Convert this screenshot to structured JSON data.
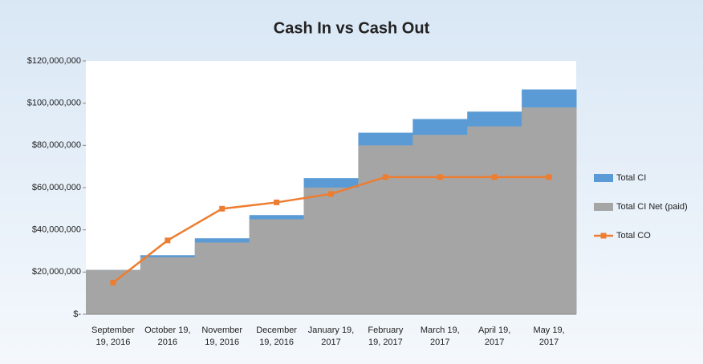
{
  "chart_data": {
    "type": "step-area-line",
    "title": "Cash In vs Cash Out",
    "categories": [
      "September 19, 2016",
      "October 19, 2016",
      "November 19, 2016",
      "December 19, 2016",
      "January 19, 2017",
      "February 19, 2017",
      "March 19, 2017",
      "April 19, 2017",
      "May 19, 2017"
    ],
    "series": [
      {
        "name": "Total CI",
        "color": "#5b9bd5",
        "kind": "area",
        "values": [
          21000000,
          28000000,
          36000000,
          47000000,
          64500000,
          86000000,
          92500000,
          96000000,
          106500000
        ]
      },
      {
        "name": "Total CI Net (paid)",
        "color": "#a5a5a5",
        "kind": "area",
        "values": [
          21000000,
          27000000,
          34000000,
          45000000,
          60000000,
          80000000,
          85000000,
          89000000,
          98000000
        ]
      },
      {
        "name": "Total CO",
        "color": "#ed7d31",
        "kind": "line",
        "values": [
          15000000,
          35000000,
          50000000,
          53000000,
          57000000,
          65000000,
          65000000,
          65000000,
          65000000
        ]
      }
    ],
    "ylim": [
      0,
      120000000
    ],
    "yticks": [
      {
        "value": 0,
        "label": "$-"
      },
      {
        "value": 20000000,
        "label": "$20,000,000"
      },
      {
        "value": 40000000,
        "label": "$40,000,000"
      },
      {
        "value": 60000000,
        "label": "$60,000,000"
      },
      {
        "value": 80000000,
        "label": "$80,000,000"
      },
      {
        "value": 100000000,
        "label": "$100,000,000"
      },
      {
        "value": 120000000,
        "label": "$120,000,000"
      }
    ],
    "legend": "right"
  }
}
